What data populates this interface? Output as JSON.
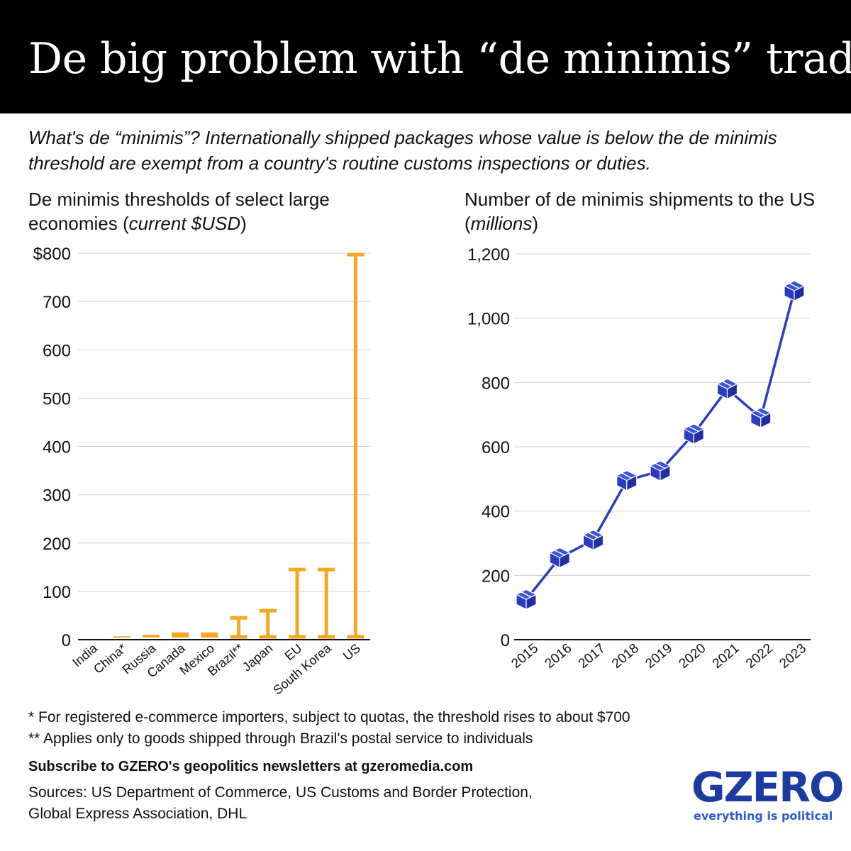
{
  "header": {
    "title": "De big problem with “de minimis” trade"
  },
  "subtitle": "What's de “minimis”? Internationally shipped packages whose value is below the de minimis threshold are exempt from a country's routine customs inspections or duties.",
  "left_panel": {
    "title_main": "De minimis thresholds of select large economies (",
    "title_italic": "current $USD",
    "title_end": ")"
  },
  "right_panel": {
    "title_main": "Number of de minimis shipments to the US (",
    "title_italic": "millions",
    "title_end": ")"
  },
  "chart_data": [
    {
      "type": "bar",
      "categories": [
        "India",
        "China*",
        "Russia",
        "Canada",
        "Mexico",
        "Brazil**",
        "Japan",
        "EU",
        "South Korea",
        "US"
      ],
      "values": [
        0,
        7,
        10,
        15,
        15,
        48,
        63,
        148,
        148,
        800
      ],
      "tick_labels": [
        "0",
        "100",
        "200",
        "300",
        "400",
        "500",
        "600",
        "700",
        "$800"
      ],
      "ylim": [
        0,
        800
      ],
      "grid": true,
      "color": "#f5a71f"
    },
    {
      "type": "line",
      "x": [
        "2015",
        "2016",
        "2017",
        "2018",
        "2019",
        "2020",
        "2021",
        "2022",
        "2023"
      ],
      "values": [
        125,
        255,
        310,
        495,
        525,
        640,
        780,
        690,
        1085
      ],
      "tick_labels": [
        "0",
        "200",
        "400",
        "600",
        "800",
        "1,000",
        "1,200"
      ],
      "ylim": [
        0,
        1200
      ],
      "grid": true,
      "color": "#2a3cbf",
      "marker": "package-icon"
    }
  ],
  "footnotes": [
    "* For registered e-commerce importers, subject to quotas, the threshold rises to about $700",
    "** Applies only to goods shipped through Brazil's postal service to individuals"
  ],
  "subscribe": "Subscribe to GZERO's geopolitics newsletters at gzeromedia.com",
  "sources": [
    "Sources: US Department of Commerce, US Customs and Border Protection,",
    "Global Express Association, DHL"
  ],
  "logo": {
    "name": "GZERO",
    "tagline": "everything is political"
  }
}
